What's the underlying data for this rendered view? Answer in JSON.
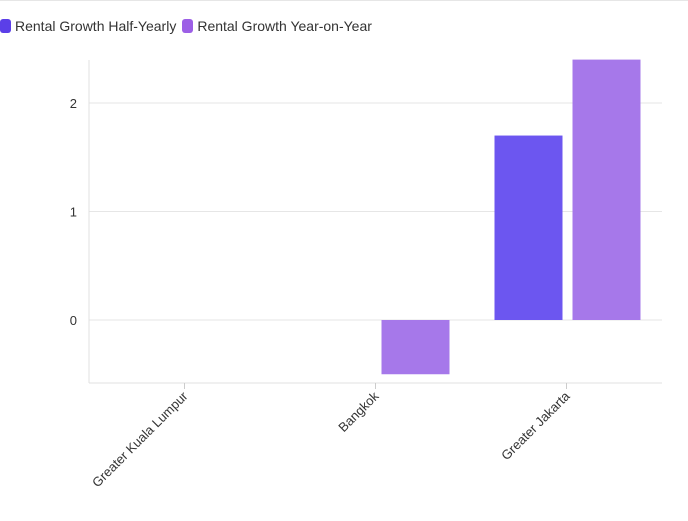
{
  "chart_data": {
    "type": "bar",
    "title": "",
    "xlabel": "",
    "ylabel": "",
    "categories": [
      "Greater Kuala Lumpur",
      "Bangkok",
      "Greater Jakarta"
    ],
    "series": [
      {
        "name": "Rental Growth Half-Yearly",
        "color": "#6c56f0",
        "values": [
          null,
          null,
          1.7
        ]
      },
      {
        "name": "Rental Growth Year-on-Year",
        "color": "#a678ea",
        "values": [
          null,
          -0.5,
          2.4
        ]
      }
    ],
    "ylim": [
      -0.6,
      2.4
    ],
    "yticks": [
      0,
      1,
      2
    ],
    "grid": true,
    "legend_position": "top-left"
  }
}
